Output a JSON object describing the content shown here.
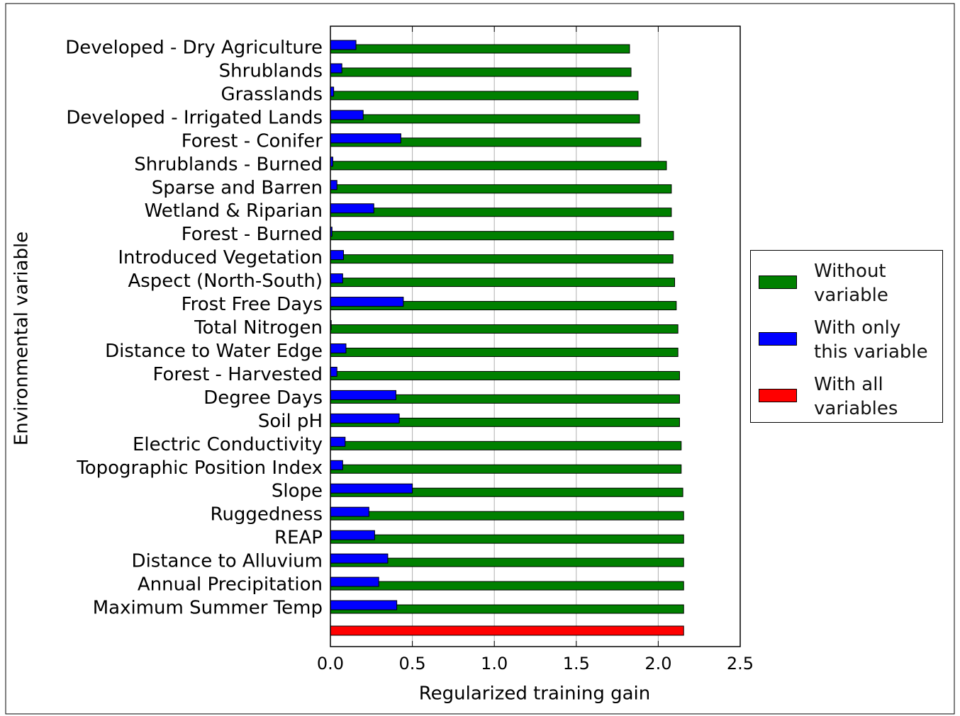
{
  "chart_data": {
    "type": "barh",
    "xlabel": "Regularized training gain",
    "ylabel": "Environmental variable",
    "categories": [
      "Developed - Dry Agriculture",
      "Shrublands",
      "Grasslands",
      "Developed - Irrigated Lands",
      "Forest - Conifer",
      "Shrublands - Burned",
      "Sparse and Barren",
      "Wetland & Riparian",
      "Forest - Burned",
      "Introduced Vegetation",
      "Aspect (North-South)",
      "Frost Free Days",
      "Total Nitrogen",
      "Distance to Water Edge",
      "Forest - Harvested",
      "Degree Days",
      "Soil pH",
      "Electric Conductivity",
      "Topographic Position Index",
      "Slope",
      "Ruggedness",
      "REAP",
      "Distance to Alluvium",
      "Annual Precipitation",
      "Maximum Summer Temp",
      null
    ],
    "series": [
      {
        "name": "Without\nvariable",
        "color": "#008000",
        "values": [
          1.825,
          1.834,
          1.877,
          1.886,
          1.894,
          2.05,
          2.08,
          2.08,
          2.093,
          2.09,
          2.1,
          2.11,
          2.12,
          2.12,
          2.13,
          2.13,
          2.13,
          2.14,
          2.14,
          2.15,
          2.155,
          2.155,
          2.155,
          2.155,
          2.155,
          null
        ]
      },
      {
        "name": "With only\nthis variable",
        "color": "#0000ff",
        "values": [
          0.156,
          0.07,
          0.02,
          0.2,
          0.43,
          0.015,
          0.04,
          0.265,
          0.01,
          0.08,
          0.075,
          0.445,
          0.005,
          0.095,
          0.04,
          0.4,
          0.42,
          0.09,
          0.075,
          0.5,
          0.235,
          0.27,
          0.35,
          0.295,
          0.405,
          null
        ]
      },
      {
        "name": "With all\nvariables",
        "color": "#ff0000",
        "values": [
          null,
          null,
          null,
          null,
          null,
          null,
          null,
          null,
          null,
          null,
          null,
          null,
          null,
          null,
          null,
          null,
          null,
          null,
          null,
          null,
          null,
          null,
          null,
          null,
          null,
          2.155
        ]
      }
    ],
    "xlim": [
      0,
      2.5
    ],
    "xticks": [
      {
        "value": 0,
        "label": "0.0"
      },
      0.5,
      {
        "value": 1,
        "label": "1.0"
      },
      1.5,
      {
        "value": 2,
        "label": "2.0"
      },
      2.5
    ],
    "grid": true,
    "legend": "right"
  }
}
